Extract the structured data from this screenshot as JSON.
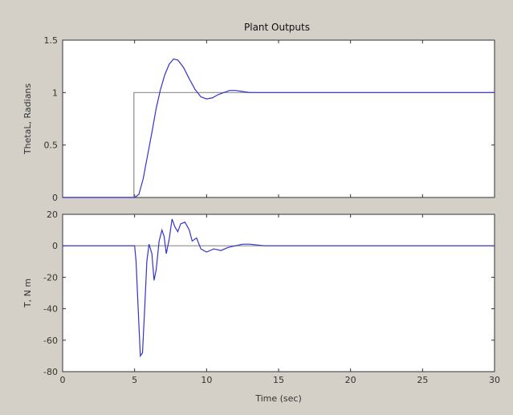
{
  "window": {
    "title": "Plant Outputs",
    "background": "#d4d0c8"
  },
  "chart_data": [
    {
      "type": "line",
      "title": "Plant Outputs",
      "xlabel": "",
      "ylabel": "ThetaL, Radians",
      "xlim": [
        0,
        30
      ],
      "ylim": [
        0,
        1.5
      ],
      "yticks": [
        0,
        0.5,
        1,
        1.5
      ],
      "ytick_labels": [
        "0",
        "0.5",
        "1",
        "1.5"
      ],
      "show_xtick_labels": false,
      "grid": false,
      "series": [
        {
          "color": "#8c8c8c",
          "x": [
            0,
            4.95,
            4.95,
            30
          ],
          "y": [
            0,
            0,
            1,
            1
          ]
        },
        {
          "color": "#3333cc",
          "x": [
            0,
            5.0,
            5.3,
            5.6,
            5.9,
            6.2,
            6.5,
            6.8,
            7.1,
            7.4,
            7.7,
            8.0,
            8.4,
            8.8,
            9.2,
            9.6,
            10.0,
            10.4,
            10.8,
            11.2,
            11.6,
            12.0,
            12.5,
            13.0,
            13.5,
            14.0,
            15.0,
            16.0,
            18.0,
            20.0,
            22.0,
            24.0,
            26.0,
            28.0,
            30.0
          ],
          "y": [
            0,
            0,
            0.03,
            0.18,
            0.4,
            0.62,
            0.85,
            1.03,
            1.17,
            1.27,
            1.32,
            1.31,
            1.24,
            1.13,
            1.03,
            0.96,
            0.94,
            0.95,
            0.98,
            1.0,
            1.02,
            1.02,
            1.01,
            1.0,
            1.0,
            1.0,
            1.0,
            1.0,
            1.0,
            1.0,
            1.0,
            1.0,
            1.0,
            1.0,
            1.0
          ]
        }
      ]
    },
    {
      "type": "line",
      "title": "",
      "xlabel": "Time (sec)",
      "ylabel": "T, N m",
      "xlim": [
        0,
        30
      ],
      "ylim": [
        -80,
        20
      ],
      "xticks": [
        0,
        5,
        10,
        15,
        20,
        25,
        30
      ],
      "xtick_labels": [
        "0",
        "5",
        "10",
        "15",
        "20",
        "25",
        "30"
      ],
      "yticks": [
        -80,
        -60,
        -40,
        -20,
        0,
        20
      ],
      "ytick_labels": [
        "-80",
        "-60",
        "-40",
        "-20",
        "0",
        "20"
      ],
      "grid": false,
      "series": [
        {
          "color": "#8c8c8c",
          "x": [
            0,
            30
          ],
          "y": [
            0,
            0
          ]
        },
        {
          "color": "#3333cc",
          "x": [
            0,
            5.0,
            5.1,
            5.25,
            5.4,
            5.55,
            5.7,
            5.85,
            6.0,
            6.2,
            6.35,
            6.5,
            6.7,
            6.9,
            7.05,
            7.2,
            7.4,
            7.6,
            7.8,
            8.0,
            8.2,
            8.5,
            8.8,
            9.0,
            9.3,
            9.6,
            10.0,
            10.5,
            11.0,
            11.5,
            12.0,
            12.5,
            13.0,
            14.0,
            16.0,
            30.0
          ],
          "y": [
            0,
            0,
            -10,
            -40,
            -70,
            -68,
            -40,
            -10,
            1,
            -5,
            -22,
            -15,
            3,
            10,
            6,
            -5,
            4,
            17,
            12,
            9,
            14,
            15,
            10,
            3,
            5,
            -2,
            -4,
            -2,
            -3,
            -1,
            0,
            1,
            1,
            0,
            0,
            0
          ]
        }
      ]
    }
  ]
}
